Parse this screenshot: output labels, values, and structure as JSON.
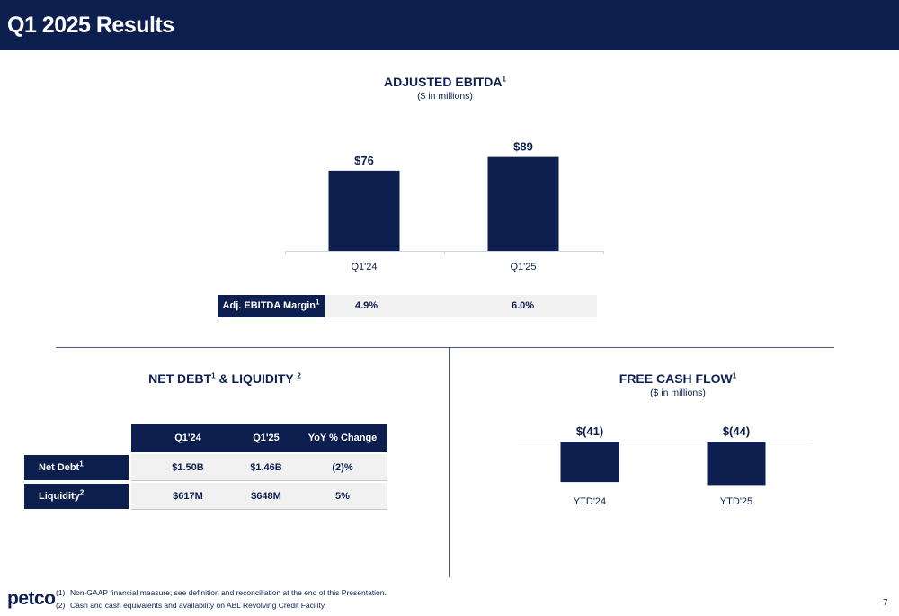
{
  "header": {
    "title": "Q1 2025 Results"
  },
  "ebitda": {
    "title": "ADJUSTED EBITDA",
    "title_sup": "1",
    "subtitle": "($ in millions)",
    "margin_label": "Adj. EBITDA Margin",
    "margin_label_sup": "1",
    "margins": [
      "4.9%",
      "6.0%"
    ]
  },
  "net_debt": {
    "title_part1": "NET DEBT",
    "title_sup1": "1",
    "title_part2": " & LIQUIDITY ",
    "title_sup2": "2",
    "columns": [
      "Q1'24",
      "Q1'25",
      "YoY % Change"
    ],
    "rows": [
      {
        "label": "Net Debt",
        "sup": "1",
        "values": [
          "$1.50B",
          "$1.46B",
          "(2)%"
        ]
      },
      {
        "label": "Liquidity",
        "sup": "2",
        "values": [
          "$617M",
          "$648M",
          "5%"
        ]
      }
    ]
  },
  "fcf": {
    "title": "FREE CASH FLOW",
    "title_sup": "1",
    "subtitle": "($ in millions)"
  },
  "chart_data": [
    {
      "type": "bar",
      "title": "ADJUSTED EBITDA",
      "categories": [
        "Q1'24",
        "Q1'25"
      ],
      "values": [
        76,
        89
      ],
      "value_labels": [
        "$76",
        "$89"
      ],
      "ylim": [
        0,
        110
      ],
      "color": "#0d1f4f"
    },
    {
      "type": "bar",
      "title": "FREE CASH FLOW",
      "categories": [
        "YTD'24",
        "YTD'25"
      ],
      "values": [
        -41,
        -44
      ],
      "value_labels": [
        "$(41)",
        "$(44)"
      ],
      "color": "#0d1f4f"
    }
  ],
  "footnotes": [
    {
      "num": "(1)",
      "text": "Non-GAAP financial measure; see definition and reconciliation at the end of this Presentation."
    },
    {
      "num": "(2)",
      "text": "Cash and cash equivalents and availability on ABL Revolving Credit Facility."
    }
  ],
  "logo": "petco",
  "page_number": "7",
  "colors": {
    "navy": "#0d1f4f",
    "light_gray": "#f1f1f1",
    "axis": "#c9d6ea"
  }
}
